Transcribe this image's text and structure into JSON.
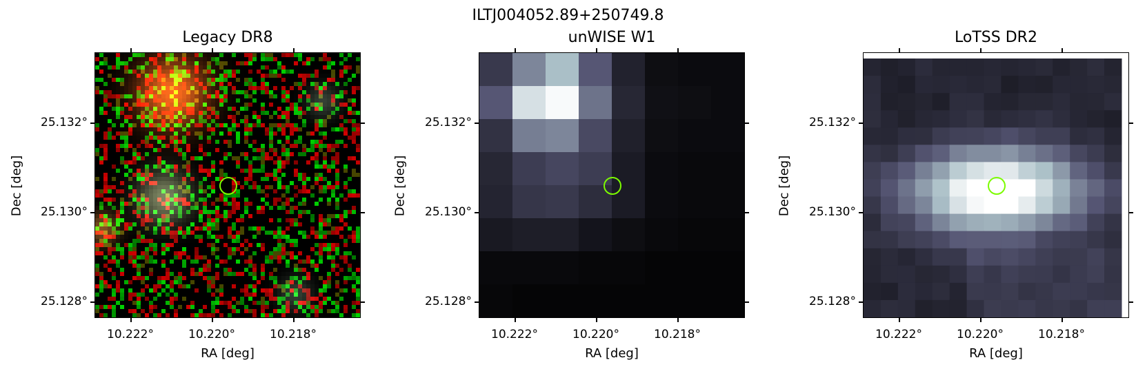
{
  "figure": {
    "title": "ILTJ004052.89+250749.8"
  },
  "marker": {
    "color": "#7CFC00",
    "shape": "circle"
  },
  "panels": [
    {
      "title": "Legacy DR8",
      "xlabel": "RA [deg]",
      "ylabel": "Dec [deg]",
      "x_ticks": [
        "10.222°",
        "10.220°",
        "10.218°"
      ],
      "y_ticks": [
        "25.132°",
        "25.130°",
        "25.128°"
      ],
      "colormap": "rgb composite"
    },
    {
      "title": "unWISE W1",
      "xlabel": "RA [deg]",
      "ylabel": "Dec [deg]",
      "x_ticks": [
        "10.222°",
        "10.220°",
        "10.218°"
      ],
      "y_ticks": [
        "25.132°",
        "25.130°",
        "25.128°"
      ],
      "colormap": "bone"
    },
    {
      "title": "LoTSS DR2",
      "xlabel": "RA [deg]",
      "ylabel": "Dec [deg]",
      "x_ticks": [
        "10.222°",
        "10.220°",
        "10.218°"
      ],
      "y_ticks": [
        "25.132°",
        "25.130°",
        "25.128°"
      ],
      "colormap": "bone"
    }
  ]
}
